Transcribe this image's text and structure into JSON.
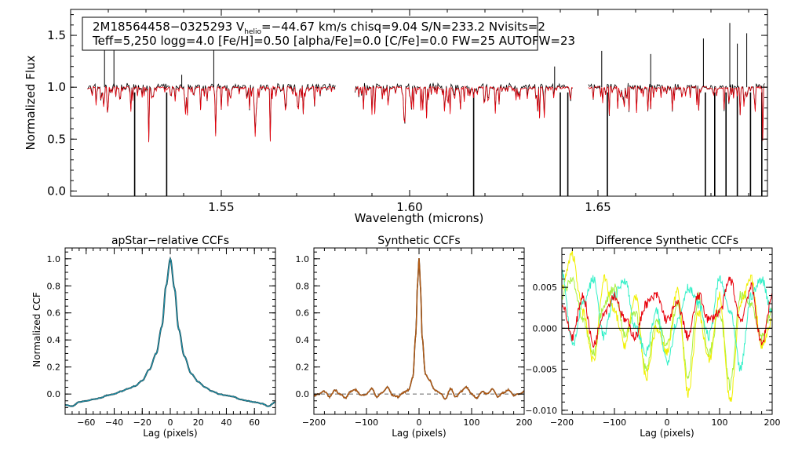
{
  "info_box": {
    "line1_a": "2M18564458−0325293  V",
    "line1_sub": "helio",
    "line1_b": "=−44.67 km/s  chisq=9.04  S/N=233.2  Nvisits=2",
    "line2": "Teff=5,250 logg=4.0 [Fe/H]=0.50 [alpha/Fe]=0.0 [C/Fe]=0.0 FW=25 AUTOFW=23"
  },
  "colors": {
    "observed": "#000000",
    "model": "#e8000b",
    "apstar_ccf": "#1a8fa8",
    "synthetic_ccf": "#b35a12",
    "diff_series": [
      "#e8000b",
      "#33f0c8",
      "#f0f000",
      "#a8f040"
    ]
  },
  "chart_data": [
    {
      "type": "line",
      "id": "spectrum",
      "title": "",
      "xlabel": "Wavelength (microns)",
      "ylabel": "Normalized Flux",
      "xlim": [
        1.51,
        1.695
      ],
      "ylim": [
        -0.05,
        1.75
      ],
      "xticks": [
        1.55,
        1.6,
        1.65
      ],
      "xtick_labels": [
        "1.55",
        "1.60",
        "1.65"
      ],
      "yticks": [
        0.0,
        0.5,
        1.0,
        1.5
      ],
      "ytick_labels": [
        "0.0",
        "0.5",
        "1.0",
        "1.5"
      ],
      "chips": [
        [
          1.5145,
          1.5805
        ],
        [
          1.5855,
          1.6435
        ],
        [
          1.6475,
          1.6945
        ]
      ],
      "series": [
        {
          "name": "observed",
          "continuum": 1.0
        },
        {
          "name": "model",
          "continuum": 0.99
        }
      ],
      "emission_spikes": [
        [
          1.519,
          1.62
        ],
        [
          1.5215,
          1.4
        ],
        [
          1.5395,
          1.12
        ],
        [
          1.548,
          1.4
        ],
        [
          1.6385,
          1.2
        ],
        [
          1.651,
          1.35
        ],
        [
          1.664,
          1.32
        ],
        [
          1.678,
          1.47
        ],
        [
          1.685,
          1.62
        ],
        [
          1.687,
          1.42
        ],
        [
          1.6895,
          1.52
        ]
      ],
      "bad_pixel_drops": [
        1.527,
        1.5355,
        1.617,
        1.64,
        1.642,
        1.6525,
        1.6785,
        1.681,
        1.684,
        1.687,
        1.6905,
        1.6935
      ]
    },
    {
      "type": "line",
      "id": "apstar_ccf",
      "title": "apStar−relative CCFs",
      "xlabel": "Lag (pixels)",
      "ylabel": "Normalized CCF",
      "xlim": [
        -75,
        75
      ],
      "ylim": [
        -0.15,
        1.08
      ],
      "xticks": [
        -60,
        -40,
        -20,
        0,
        20,
        40,
        60
      ],
      "xtick_labels": [
        "−60",
        "−40",
        "−20",
        "0",
        "20",
        "40",
        "60"
      ],
      "yticks": [
        0.0,
        0.2,
        0.4,
        0.6,
        0.8,
        1.0
      ],
      "ytick_labels": [
        "0.0",
        "0.2",
        "0.4",
        "0.6",
        "0.8",
        "1.0"
      ],
      "series": [
        {
          "name": "visit ccf",
          "x": [
            -75,
            -70,
            -65,
            -60,
            -55,
            -50,
            -45,
            -40,
            -35,
            -30,
            -25,
            -20,
            -15,
            -10,
            -6,
            -3,
            0,
            3,
            6,
            10,
            15,
            20,
            25,
            30,
            35,
            40,
            45,
            50,
            55,
            60,
            65,
            70,
            75
          ],
          "y": [
            -0.08,
            -0.09,
            -0.06,
            -0.05,
            -0.04,
            -0.03,
            -0.01,
            0.0,
            0.02,
            0.04,
            0.06,
            0.1,
            0.18,
            0.3,
            0.5,
            0.8,
            1.0,
            0.78,
            0.48,
            0.28,
            0.15,
            0.09,
            0.05,
            0.02,
            0.0,
            -0.01,
            -0.02,
            -0.04,
            -0.05,
            -0.06,
            -0.07,
            -0.09,
            -0.06
          ]
        }
      ]
    },
    {
      "type": "line",
      "id": "synthetic_ccf",
      "title": "Synthetic CCFs",
      "xlabel": "Lag (pixels)",
      "ylabel": "",
      "xlim": [
        -200,
        200
      ],
      "ylim": [
        -0.15,
        1.08
      ],
      "xticks": [
        -200,
        -100,
        0,
        100,
        200
      ],
      "xtick_labels": [
        "−200",
        "−100",
        "0",
        "100",
        "200"
      ],
      "yticks": [
        0.0,
        0.2,
        0.4,
        0.6,
        0.8,
        1.0
      ],
      "ytick_labels": [
        "0.0",
        "0.2",
        "0.4",
        "0.6",
        "0.8",
        "1.0"
      ],
      "series": [
        {
          "name": "synthetic ccf",
          "x": [
            -200,
            -190,
            -180,
            -170,
            -160,
            -150,
            -140,
            -130,
            -120,
            -110,
            -100,
            -90,
            -80,
            -70,
            -60,
            -50,
            -40,
            -30,
            -20,
            -12,
            -6,
            -3,
            0,
            3,
            6,
            12,
            20,
            30,
            40,
            50,
            60,
            70,
            80,
            90,
            100,
            110,
            120,
            130,
            140,
            150,
            160,
            170,
            180,
            190,
            200
          ],
          "y": [
            -0.01,
            0.0,
            0.02,
            -0.02,
            0.03,
            0.0,
            -0.03,
            0.02,
            0.03,
            -0.01,
            0.0,
            0.04,
            -0.02,
            0.01,
            0.05,
            -0.01,
            -0.02,
            0.01,
            0.03,
            0.12,
            0.45,
            0.8,
            1.0,
            0.78,
            0.42,
            0.15,
            0.1,
            0.03,
            0.01,
            -0.04,
            0.04,
            -0.02,
            0.02,
            0.05,
            0.0,
            -0.03,
            0.02,
            0.0,
            0.04,
            -0.02,
            0.01,
            0.03,
            -0.01,
            0.0,
            0.02
          ]
        },
        {
          "name": "zero level (dashed)",
          "x": [
            -200,
            200
          ],
          "y": [
            0,
            0
          ]
        }
      ]
    },
    {
      "type": "line",
      "id": "difference_ccf",
      "title": "Difference Synthetic CCFs",
      "xlabel": "Lag (pixels)",
      "ylabel": "",
      "xlim": [
        -200,
        200
      ],
      "ylim": [
        -0.0105,
        0.0098
      ],
      "xticks": [
        -200,
        -100,
        0,
        100,
        200
      ],
      "xtick_labels": [
        "−200",
        "−100",
        "0",
        "100",
        "200"
      ],
      "yticks": [
        -0.01,
        -0.005,
        0.0,
        0.005
      ],
      "ytick_labels": [
        "−0.010",
        "−0.005",
        "0.000",
        "0.005"
      ],
      "series": [
        {
          "name": "red",
          "x": [
            -200,
            -180,
            -160,
            -140,
            -120,
            -100,
            -80,
            -60,
            -40,
            -20,
            0,
            20,
            40,
            60,
            80,
            100,
            120,
            140,
            160,
            180,
            200
          ],
          "y": [
            0.003,
            -0.001,
            0.004,
            -0.002,
            0.002,
            0.004,
            0.001,
            -0.001,
            0.003,
            0.004,
            0.001,
            0.003,
            -0.001,
            0.004,
            0.001,
            0.002,
            0.006,
            0.001,
            0.005,
            -0.002,
            0.004
          ]
        },
        {
          "name": "cyan",
          "x": [
            -200,
            -180,
            -160,
            -140,
            -120,
            -100,
            -80,
            -60,
            -40,
            -20,
            0,
            20,
            40,
            60,
            80,
            100,
            120,
            140,
            160,
            180,
            200
          ],
          "y": [
            0.007,
            -0.002,
            0.003,
            0.006,
            -0.001,
            0.004,
            0.006,
            0.0,
            -0.003,
            0.002,
            -0.004,
            0.001,
            0.005,
            0.003,
            -0.001,
            0.006,
            0.002,
            -0.005,
            0.004,
            0.006,
            0.002
          ]
        },
        {
          "name": "yellow",
          "x": [
            -200,
            -180,
            -160,
            -140,
            -120,
            -100,
            -80,
            -60,
            -40,
            -20,
            0,
            20,
            40,
            60,
            80,
            100,
            120,
            140,
            160,
            180,
            200
          ],
          "y": [
            0.005,
            0.009,
            0.002,
            -0.004,
            0.006,
            0.002,
            -0.002,
            0.004,
            -0.006,
            0.0,
            -0.003,
            0.005,
            -0.008,
            0.002,
            -0.004,
            0.004,
            -0.009,
            0.003,
            0.006,
            -0.002,
            0.001
          ]
        },
        {
          "name": "yellow-green",
          "x": [
            -200,
            -180,
            -160,
            -140,
            -120,
            -100,
            -80,
            -60,
            -40,
            -20,
            0,
            20,
            40,
            60,
            80,
            100,
            120,
            140,
            160,
            180,
            200
          ],
          "y": [
            0.004,
            0.006,
            0.001,
            -0.003,
            0.003,
            0.005,
            -0.001,
            0.002,
            -0.005,
            0.001,
            -0.002,
            0.003,
            -0.006,
            0.004,
            -0.003,
            0.002,
            -0.007,
            0.004,
            0.003,
            -0.001,
            0.002
          ]
        },
        {
          "name": "zero level",
          "x": [
            -200,
            200
          ],
          "y": [
            0,
            0
          ]
        }
      ]
    }
  ]
}
